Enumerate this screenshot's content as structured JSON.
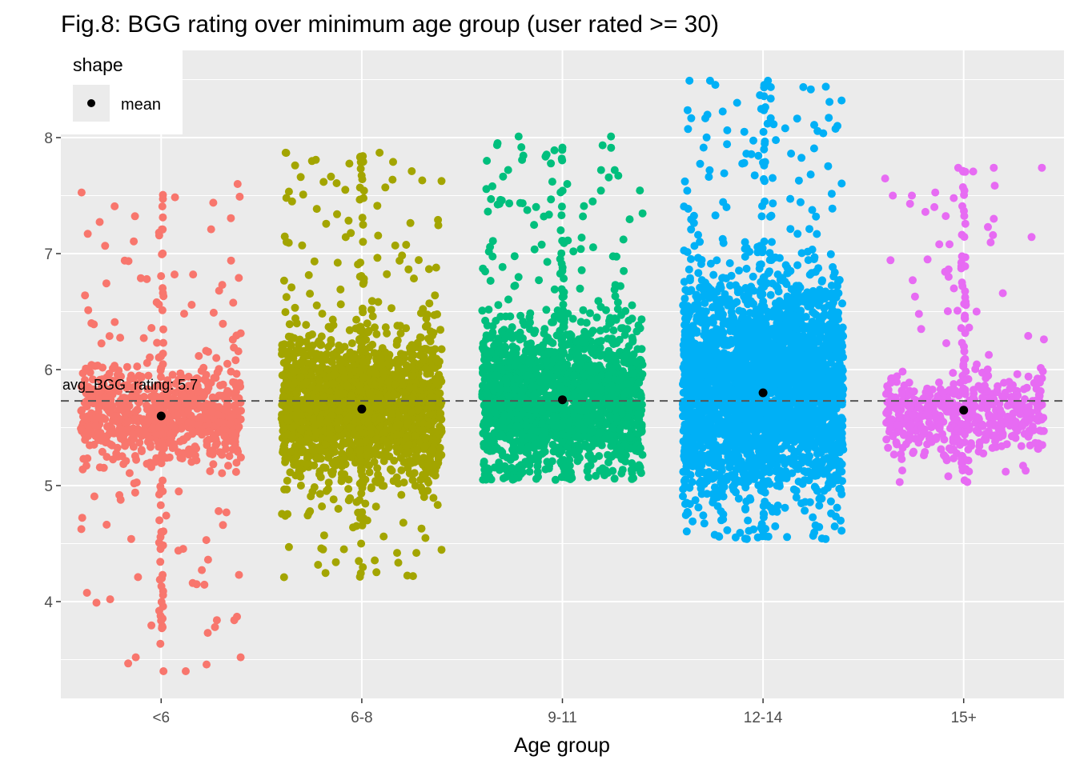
{
  "chart_data": {
    "type": "scatter",
    "title": "Fig.8: BGG rating over minimum age group (user rated >= 30)",
    "xlabel": "Age group",
    "ylabel": "",
    "categories": [
      "<6",
      "6-8",
      "9-11",
      "12-14",
      "15+"
    ],
    "ylim": [
      3.2,
      8.6
    ],
    "yticks": [
      4,
      5,
      6,
      7,
      8
    ],
    "grid": true,
    "legend": {
      "title": "shape",
      "placement": "top-left",
      "items": [
        {
          "label": "mean",
          "color": "#000000"
        }
      ]
    },
    "reference_line": {
      "value": 5.73,
      "label": "avg_BGG_rating:  5.7",
      "style": "dashed"
    },
    "series": [
      {
        "category": "<6",
        "color": "#F8766D",
        "mean": 5.6,
        "q1": 5.47,
        "q3": 5.75,
        "min": 3.4,
        "max": 7.6,
        "outliers": [
          3.4,
          3.4,
          3.52,
          3.52,
          3.73,
          3.78,
          3.84,
          3.84,
          4.15,
          4.16,
          4.23,
          4.23,
          4.53,
          4.54,
          4.6,
          4.66,
          4.78,
          4.94,
          4.95,
          6.58,
          6.64,
          6.68,
          6.73,
          6.78,
          6.82,
          6.82,
          6.94,
          6.94,
          7.6
        ]
      },
      {
        "category": "6-8",
        "color": "#A3A500",
        "mean": 5.66,
        "q1": 5.48,
        "q3": 5.87,
        "min": 4.21,
        "max": 7.87,
        "outliers": [
          4.21,
          4.22,
          4.35,
          4.45,
          4.64,
          4.74,
          4.92,
          5.0,
          7.31,
          7.45,
          7.48,
          7.55,
          7.57,
          7.66,
          7.71,
          7.87,
          7.87
        ]
      },
      {
        "category": "9-11",
        "color": "#00BF7D",
        "mean": 5.74,
        "q1": 5.55,
        "q3": 5.95,
        "min": 5.05,
        "max": 8.01,
        "outliers": [
          5.05,
          5.06,
          5.1,
          5.12,
          5.2,
          7.45,
          7.47,
          7.58,
          7.6,
          7.62,
          7.72,
          7.72,
          8.01,
          8.01
        ]
      },
      {
        "category": "12-14",
        "color": "#00B0F6",
        "mean": 5.8,
        "q1": 5.55,
        "q3": 6.15,
        "min": 4.54,
        "max": 8.49,
        "outliers": [
          4.54,
          4.54,
          4.95,
          5.0,
          5.04,
          8.05,
          8.08,
          8.12,
          8.3,
          8.32,
          8.49,
          8.49,
          8.49
        ]
      },
      {
        "category": "15+",
        "color": "#E76BF3",
        "mean": 5.65,
        "q1": 5.5,
        "q3": 5.72,
        "min": 5.03,
        "max": 7.74,
        "outliers": [
          5.03,
          5.03,
          5.08,
          5.12,
          5.13,
          6.29,
          6.35,
          6.48,
          6.5,
          6.63,
          6.7,
          6.8,
          6.95,
          7.08,
          7.08,
          7.43,
          7.5,
          7.5,
          7.74,
          7.74
        ]
      }
    ]
  }
}
